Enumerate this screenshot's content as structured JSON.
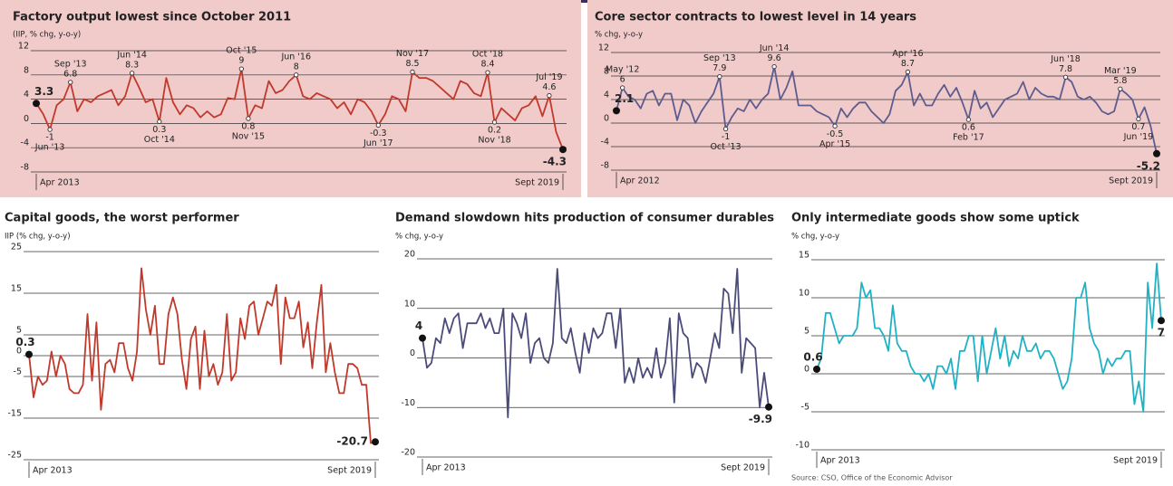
{
  "chart_data": [
    {
      "type": "line",
      "title": "Factory output lowest since October 2011",
      "ylabel": "(IIP, % chg, y-o-y)",
      "categories": [
        "Apr 2013",
        null,
        null,
        null,
        null,
        null,
        null,
        null,
        null,
        null,
        null,
        null,
        null,
        null,
        null,
        null,
        null,
        null,
        null,
        null,
        null,
        null,
        null,
        null,
        null,
        null,
        null,
        null,
        null,
        null,
        null,
        null,
        null,
        null,
        null,
        null,
        null,
        null,
        null,
        null,
        null,
        null,
        null,
        null,
        null,
        null,
        null,
        null,
        null,
        null,
        null,
        null,
        null,
        null,
        null,
        null,
        null,
        null,
        null,
        null,
        null,
        null,
        null,
        null,
        null,
        null,
        null,
        null,
        null,
        null,
        null,
        null,
        null,
        null,
        null,
        null,
        null,
        "Sept 2019"
      ],
      "series": [
        {
          "name": "IIP",
          "color": "#c0392b",
          "values": [
            3.3,
            1.6,
            -1,
            3,
            4,
            6.8,
            2,
            4,
            3.5,
            4.5,
            5,
            5.5,
            3,
            4.5,
            8.3,
            6,
            3.5,
            4,
            0.3,
            7.5,
            3.5,
            1.5,
            3,
            2.5,
            1,
            2,
            1,
            1.5,
            4.2,
            4,
            9,
            0.8,
            3,
            2.5,
            7,
            5,
            5.5,
            7,
            8,
            4.5,
            4,
            5,
            4.5,
            4,
            2.5,
            3.5,
            1.5,
            4,
            3.5,
            2,
            -0.3,
            1.5,
            4.5,
            4,
            2,
            8.5,
            7.5,
            7.5,
            7,
            6,
            5,
            4,
            7,
            6.5,
            5,
            4.5,
            8.4,
            0.2,
            2.5,
            1.5,
            0.5,
            2.5,
            3,
            4.5,
            1.2,
            4.6,
            -1.4,
            -4.3
          ]
        }
      ],
      "annotations": [
        {
          "index": 2,
          "label": "Jun '13"
        },
        {
          "index": 5,
          "label": "Sep '13"
        },
        {
          "index": 14,
          "label": "Jun '14"
        },
        {
          "index": 18,
          "label": "Oct '14"
        },
        {
          "index": 30,
          "label": "Oct '15"
        },
        {
          "index": 31,
          "label": "Nov '15"
        },
        {
          "index": 38,
          "label": "Jun '16"
        },
        {
          "index": 50,
          "label": "Jun '17"
        },
        {
          "index": 55,
          "label": "Nov '17"
        },
        {
          "index": 66,
          "label": "Oct '18"
        },
        {
          "index": 67,
          "label": "Nov '18"
        },
        {
          "index": 75,
          "label": "Jul '19"
        }
      ],
      "ylim": [
        -8,
        12
      ],
      "yticks": [
        -8,
        -4,
        0,
        4,
        8,
        12
      ],
      "grid": true,
      "background": "#f1caca"
    },
    {
      "type": "line",
      "title": "Core sector contracts to lowest level in 14 years",
      "ylabel": "% chg, y-o-y",
      "categories": [
        "Apr 2012",
        null,
        null,
        null,
        null,
        null,
        null,
        null,
        null,
        null,
        null,
        null,
        null,
        null,
        null,
        null,
        null,
        null,
        null,
        null,
        null,
        null,
        null,
        null,
        null,
        null,
        null,
        null,
        null,
        null,
        null,
        null,
        null,
        null,
        null,
        null,
        null,
        null,
        null,
        null,
        null,
        null,
        null,
        null,
        null,
        null,
        null,
        null,
        null,
        null,
        null,
        null,
        null,
        null,
        null,
        null,
        null,
        null,
        null,
        null,
        null,
        null,
        null,
        null,
        null,
        null,
        null,
        null,
        null,
        null,
        null,
        null,
        null,
        null,
        null,
        null,
        null,
        null,
        null,
        null,
        null,
        null,
        null,
        null,
        null,
        null,
        null,
        null,
        null,
        "Sept 2019"
      ],
      "series": [
        {
          "name": "Core sector",
          "color": "#5c5c8e",
          "values": [
            2.1,
            6,
            4.5,
            4,
            2.5,
            5,
            5.5,
            3,
            5,
            5,
            0.5,
            4,
            3,
            0,
            2,
            3.5,
            5,
            7.9,
            -1,
            1,
            2.5,
            2,
            4,
            2.5,
            4,
            5,
            9.6,
            4,
            6,
            8.8,
            3,
            3,
            3,
            2,
            1.5,
            1,
            -0.5,
            2.5,
            1,
            2.5,
            3.5,
            3.5,
            2,
            1,
            0,
            1.5,
            5.5,
            6.5,
            8.7,
            3,
            5,
            3,
            3,
            5,
            6.5,
            4.5,
            6,
            3.5,
            0.6,
            5.5,
            2.5,
            3.5,
            1,
            2.5,
            4,
            4.5,
            5,
            7,
            4,
            6,
            5,
            4.5,
            4.5,
            4,
            7.8,
            7,
            4.5,
            4,
            4.5,
            3.5,
            2,
            1.5,
            2,
            5.8,
            5,
            4,
            0.7,
            2.7,
            -0.5,
            -5.2
          ]
        }
      ],
      "annotations": [
        {
          "index": 1,
          "label": "May '12"
        },
        {
          "index": 17,
          "label": "Sep '13"
        },
        {
          "index": 18,
          "label": "Oct '13"
        },
        {
          "index": 26,
          "label": "Jun '14"
        },
        {
          "index": 36,
          "label": "Apr '15"
        },
        {
          "index": 48,
          "label": "Apr '16"
        },
        {
          "index": 58,
          "label": "Feb '17"
        },
        {
          "index": 74,
          "label": "Jun '18"
        },
        {
          "index": 83,
          "label": "Mar '19"
        },
        {
          "index": 86,
          "label": "Jun '19"
        }
      ],
      "ylim": [
        -8,
        12
      ],
      "yticks": [
        -8,
        -4,
        0,
        4,
        8,
        12
      ],
      "grid": true,
      "background": "#f1caca"
    },
    {
      "type": "line",
      "title": "Capital goods, the worst performer",
      "ylabel": "IIP (% chg, y-o-y)",
      "categories": [
        "Apr 2013",
        null,
        null,
        null,
        null,
        null,
        null,
        null,
        null,
        null,
        null,
        null,
        null,
        null,
        null,
        null,
        null,
        null,
        null,
        null,
        null,
        null,
        null,
        null,
        null,
        null,
        null,
        null,
        null,
        null,
        null,
        null,
        null,
        null,
        null,
        null,
        null,
        null,
        null,
        null,
        null,
        null,
        null,
        null,
        null,
        null,
        null,
        null,
        null,
        null,
        null,
        null,
        null,
        null,
        null,
        null,
        null,
        null,
        null,
        null,
        null,
        null,
        null,
        null,
        null,
        null,
        null,
        null,
        null,
        null,
        null,
        null,
        null,
        null,
        null,
        null,
        null,
        "Sept 2019"
      ],
      "series": [
        {
          "name": "Capital goods",
          "color": "#c0392b",
          "values": [
            0.3,
            -10,
            -5,
            -7,
            -6,
            1,
            -5,
            0,
            -2,
            -8,
            -9,
            -9,
            -7,
            10,
            -6,
            8,
            -13,
            -2,
            -1,
            -4,
            3,
            3,
            -3,
            -6,
            1,
            21,
            11,
            5,
            12,
            -2,
            -2,
            10,
            14,
            10,
            -1,
            -8,
            4,
            7,
            -8,
            6,
            -5,
            -2,
            -7,
            -4,
            10,
            -6,
            -4,
            9,
            4,
            12,
            13,
            5,
            9,
            13,
            12,
            17,
            -2,
            14,
            9,
            9,
            13,
            2,
            8,
            -3,
            8,
            17,
            -4,
            3,
            -4,
            -9,
            -9,
            -2,
            -2,
            -3,
            -7,
            -7,
            -21,
            -20.7
          ]
        }
      ],
      "ylim": [
        -25,
        25
      ],
      "yticks": [
        -25,
        -15,
        -5,
        0,
        5,
        15,
        25
      ],
      "grid": true
    },
    {
      "type": "line",
      "title": "Demand slowdown hits production of consumer durables",
      "ylabel": "% chg, y-o-y",
      "categories": [
        "Apr 2013",
        null,
        null,
        null,
        null,
        null,
        null,
        null,
        null,
        null,
        null,
        null,
        null,
        null,
        null,
        null,
        null,
        null,
        null,
        null,
        null,
        null,
        null,
        null,
        null,
        null,
        null,
        null,
        null,
        null,
        null,
        null,
        null,
        null,
        null,
        null,
        null,
        null,
        null,
        null,
        null,
        null,
        null,
        null,
        null,
        null,
        null,
        null,
        null,
        null,
        null,
        null,
        null,
        null,
        null,
        null,
        null,
        null,
        null,
        null,
        null,
        null,
        null,
        null,
        null,
        null,
        null,
        null,
        null,
        null,
        null,
        null,
        null,
        null,
        null,
        null,
        null,
        "Sept 2019"
      ],
      "series": [
        {
          "name": "Consumer durables",
          "color": "#4b4b7a",
          "values": [
            4,
            -2,
            -1,
            4,
            3,
            8,
            5,
            8,
            9,
            2,
            7,
            7,
            7,
            9,
            6,
            8,
            5,
            5,
            10,
            -12,
            9,
            7,
            4,
            9,
            -1,
            3,
            4,
            0,
            -1,
            3,
            18,
            4,
            3,
            6,
            1,
            -3,
            5,
            1,
            6,
            4,
            5,
            9,
            9,
            2,
            10,
            -5,
            -2,
            -5,
            0,
            -4,
            -2,
            -4,
            2,
            -4,
            -1,
            8,
            -9,
            9,
            5,
            4,
            -4,
            -1,
            -2,
            -5,
            0,
            5,
            2,
            14,
            13,
            5,
            18,
            -3,
            4,
            3,
            2,
            -10,
            -3,
            -9.9
          ]
        }
      ],
      "ylim": [
        -20,
        20
      ],
      "yticks": [
        -20,
        -10,
        0,
        10,
        20
      ],
      "grid": true
    },
    {
      "type": "line",
      "title": "Only intermediate goods show some uptick",
      "ylabel": "% chg, y-o-y",
      "categories": [
        "Apr 2013",
        null,
        null,
        null,
        null,
        null,
        null,
        null,
        null,
        null,
        null,
        null,
        null,
        null,
        null,
        null,
        null,
        null,
        null,
        null,
        null,
        null,
        null,
        null,
        null,
        null,
        null,
        null,
        null,
        null,
        null,
        null,
        null,
        null,
        null,
        null,
        null,
        null,
        null,
        null,
        null,
        null,
        null,
        null,
        null,
        null,
        null,
        null,
        null,
        null,
        null,
        null,
        null,
        null,
        null,
        null,
        null,
        null,
        null,
        null,
        null,
        null,
        null,
        null,
        null,
        null,
        null,
        null,
        null,
        null,
        null,
        null,
        null,
        null,
        null,
        null,
        null,
        "Sept 2019"
      ],
      "series": [
        {
          "name": "Intermediate goods",
          "color": "#20b2c4",
          "values": [
            0.6,
            2,
            8,
            8,
            6,
            4,
            5,
            5,
            5,
            6,
            12,
            10,
            11,
            6,
            6,
            5,
            3,
            9,
            4,
            3,
            3,
            1,
            0,
            0,
            -1,
            0,
            -2,
            1,
            1,
            0,
            2,
            -2,
            3,
            3,
            5,
            5,
            -1,
            5,
            0,
            3,
            6,
            2,
            5,
            1,
            3,
            2,
            5,
            3,
            3,
            4,
            2,
            3,
            3,
            2,
            0,
            -2,
            -1,
            2,
            10,
            10,
            12,
            6,
            4,
            3,
            0,
            2,
            1,
            2,
            2,
            3,
            3,
            -4,
            -1,
            -5,
            12,
            6,
            14.5,
            7
          ]
        }
      ],
      "ylim": [
        -10,
        15
      ],
      "yticks": [
        -10,
        -5,
        0,
        5,
        10,
        15
      ],
      "grid": true
    }
  ],
  "source": "Source: CSO, Office of the Economic Advisor"
}
